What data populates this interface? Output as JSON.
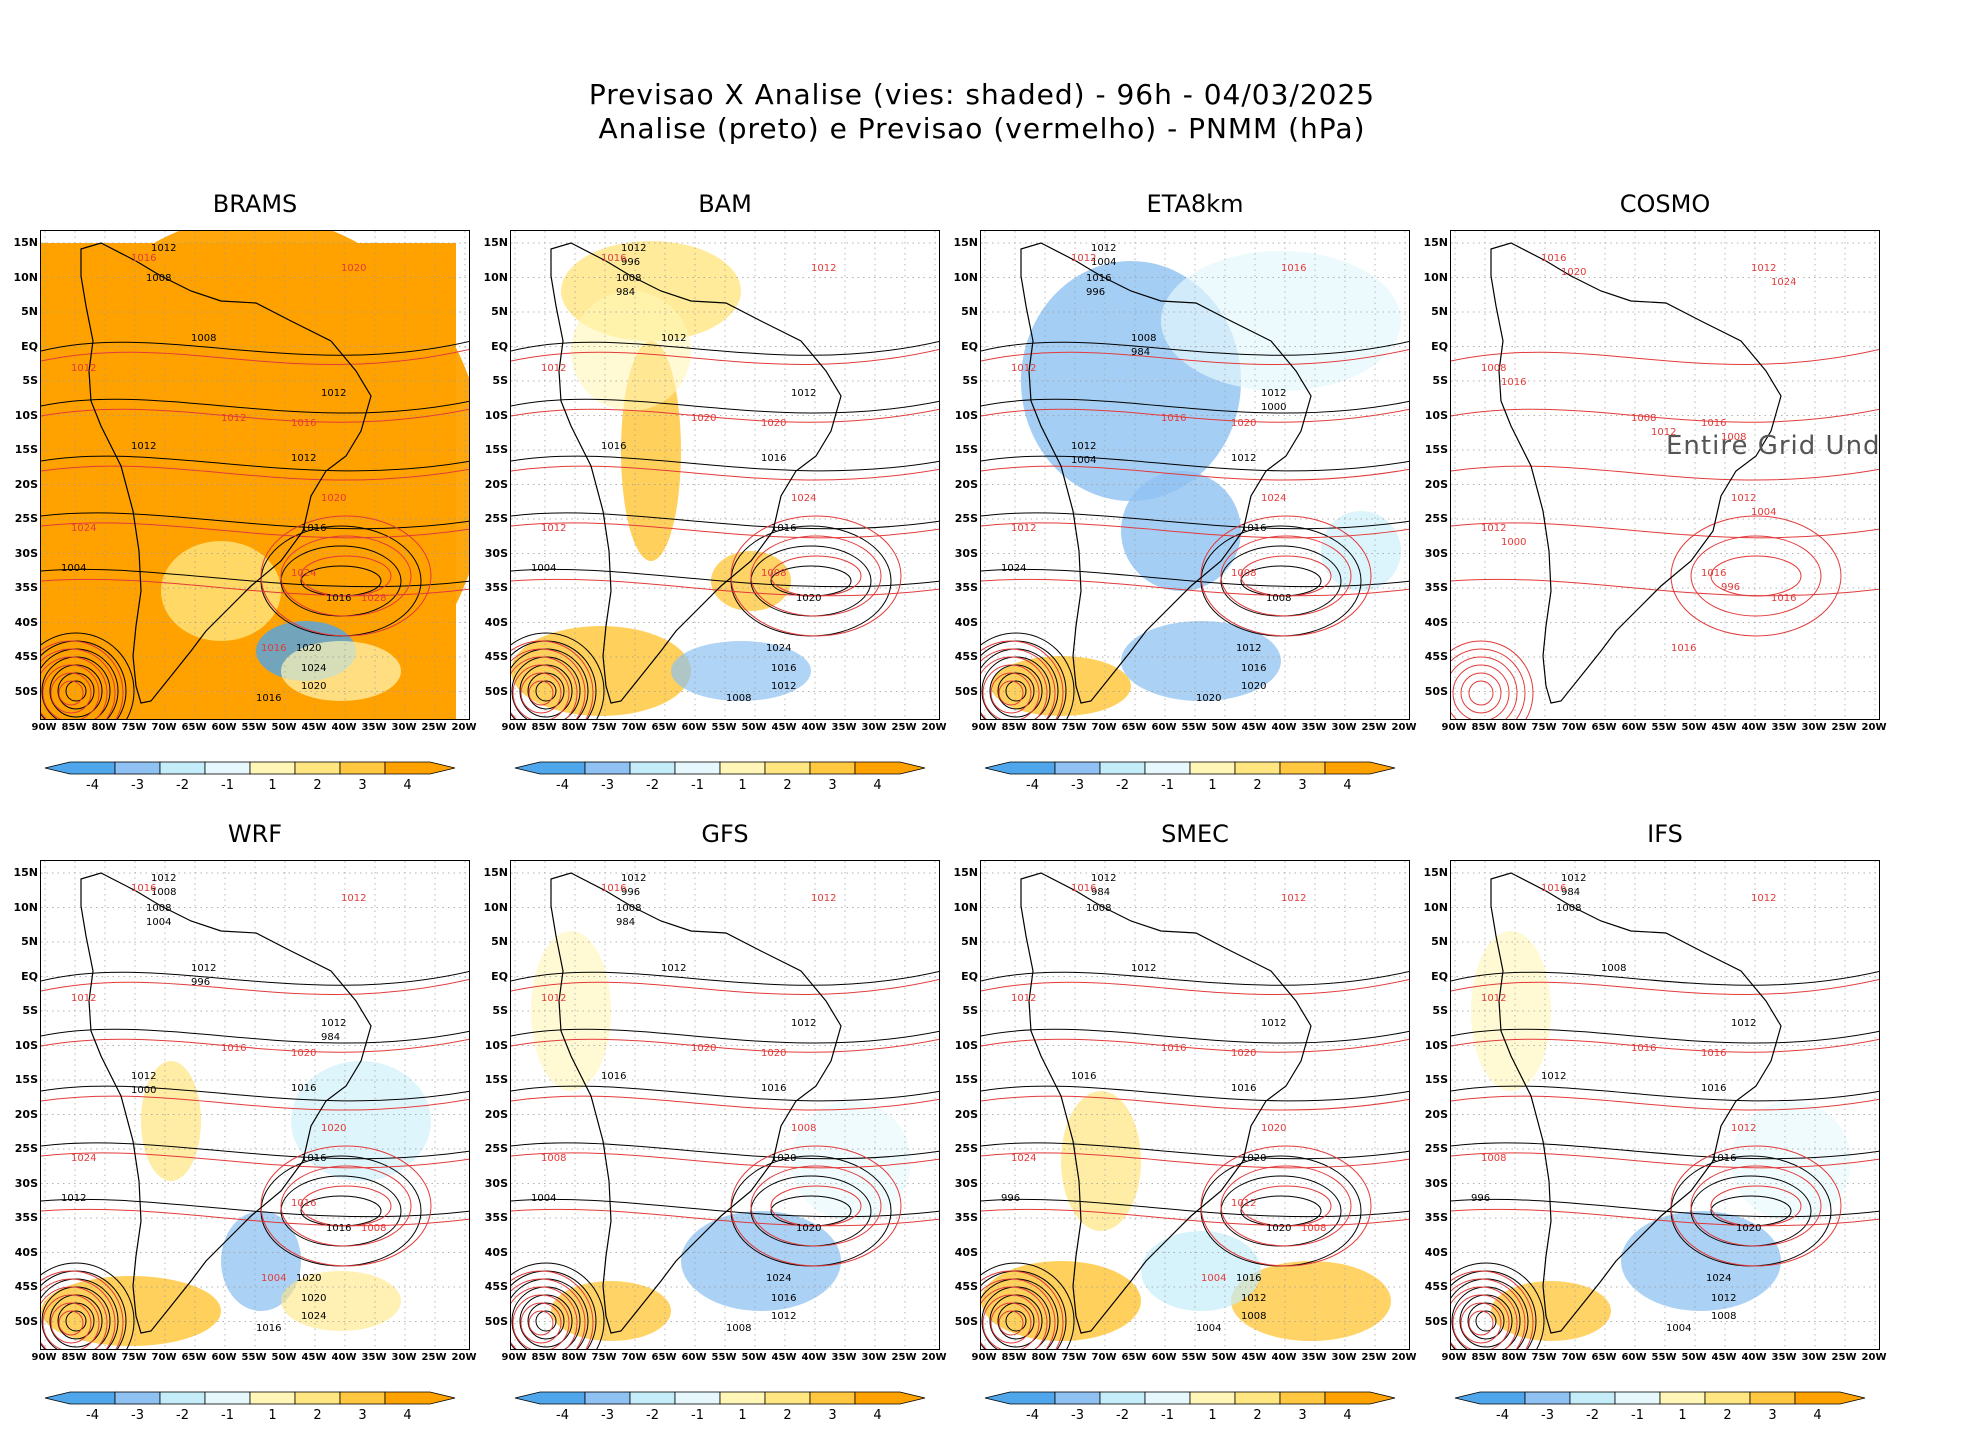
{
  "header": {
    "line1": "Previsao X Analise (vies: shaded) - 96h - 04/03/2025",
    "line2": "Analise (preto) e Previsao (vermelho) - PNMM (hPa)"
  },
  "colors": {
    "neg4": "#4fa6ea",
    "neg3": "#8fc2f2",
    "neg2": "#c4ecf9",
    "neg1": "#e6f8fc",
    "pos1": "#fff6b8",
    "pos2": "#ffe680",
    "pos3": "#ffc840",
    "pos4": "#ffa200",
    "analysis": "#000000",
    "forecast": "#e23a3a"
  },
  "lat_labels": [
    "15N",
    "10N",
    "5N",
    "EQ",
    "5S",
    "10S",
    "15S",
    "20S",
    "25S",
    "30S",
    "35S",
    "40S",
    "45S",
    "50S"
  ],
  "lon_labels": [
    "90W",
    "85W",
    "80W",
    "75W",
    "70W",
    "65W",
    "60W",
    "55W",
    "50W",
    "45W",
    "40W",
    "35W",
    "30W",
    "25W",
    "20W"
  ],
  "colorbar": {
    "labels": [
      "-4",
      "-3",
      "-2",
      "-1",
      "1",
      "2",
      "3",
      "4"
    ]
  },
  "panels": [
    {
      "name": "BRAMS",
      "bias": "warm-strong",
      "labels_analysis": [
        "1012",
        "1008",
        "1008",
        "1012",
        "1012",
        "1012",
        "1016",
        "1016",
        "1020",
        "1024",
        "1020",
        "1016",
        "1004"
      ],
      "labels_forecast": [
        "1016",
        "1020",
        "1012",
        "1012",
        "1016",
        "1020",
        "1024",
        "1024",
        "1028",
        "1016"
      ]
    },
    {
      "name": "BAM",
      "bias": "warm-south",
      "labels_analysis": [
        "1012",
        "1008",
        "1012",
        "1012",
        "1016",
        "1016",
        "1016",
        "1020",
        "1024",
        "1016",
        "1012",
        "1008",
        "1004",
        "996",
        "984"
      ],
      "labels_forecast": [
        "1016",
        "1012",
        "1012",
        "1020",
        "1020",
        "1024",
        "1012",
        "1008"
      ]
    },
    {
      "name": "ETA8km",
      "bias": "cold",
      "labels_analysis": [
        "1012",
        "1016",
        "1008",
        "1012",
        "1012",
        "1012",
        "1016",
        "1008",
        "1012",
        "1016",
        "1020",
        "1020",
        "1024",
        "1004",
        "996",
        "984",
        "1000",
        "1004"
      ],
      "labels_forecast": [
        "1012",
        "1016",
        "1012",
        "1016",
        "1020",
        "1024",
        "1012",
        "1008"
      ]
    },
    {
      "name": "COSMO",
      "bias": "undefined",
      "undefined_text": "Entire Grid Und",
      "labels_analysis": [],
      "labels_forecast": [
        "1016",
        "1012",
        "1008",
        "1008",
        "1016",
        "1012",
        "1012",
        "1016",
        "1016",
        "1016",
        "1020",
        "1024",
        "1016",
        "1012",
        "1008",
        "1004",
        "1000",
        "996"
      ]
    },
    {
      "name": "WRF",
      "bias": "mixed",
      "labels_analysis": [
        "1012",
        "1008",
        "1012",
        "1012",
        "1012",
        "1016",
        "1016",
        "1016",
        "1020",
        "1020",
        "1024",
        "1016",
        "1012",
        "1008",
        "1004",
        "996",
        "984",
        "1000"
      ],
      "labels_forecast": [
        "1016",
        "1012",
        "1012",
        "1016",
        "1020",
        "1020",
        "1024",
        "1016",
        "1008",
        "1004"
      ]
    },
    {
      "name": "GFS",
      "bias": "mixed-cold",
      "labels_analysis": [
        "1012",
        "1008",
        "1012",
        "1012",
        "1016",
        "1016",
        "1020",
        "1020",
        "1024",
        "1016",
        "1012",
        "1008",
        "1004",
        "996",
        "984"
      ],
      "labels_forecast": [
        "1016",
        "1012",
        "1012",
        "1020",
        "1020",
        "1008",
        "1008"
      ]
    },
    {
      "name": "SMEC",
      "bias": "mixed-warm",
      "labels_analysis": [
        "1012",
        "1008",
        "1012",
        "1012",
        "1016",
        "1016",
        "1020",
        "1020",
        "1016",
        "1012",
        "1008",
        "1004",
        "996",
        "984"
      ],
      "labels_forecast": [
        "1016",
        "1012",
        "1012",
        "1016",
        "1020",
        "1020",
        "1024",
        "1012",
        "1008",
        "1004"
      ]
    },
    {
      "name": "IFS",
      "bias": "mixed-cold",
      "labels_analysis": [
        "1012",
        "1008",
        "1008",
        "1012",
        "1012",
        "1016",
        "1016",
        "1020",
        "1024",
        "1012",
        "1008",
        "1004",
        "996",
        "984"
      ],
      "labels_forecast": [
        "1016",
        "1012",
        "1012",
        "1016",
        "1016",
        "1012",
        "1008"
      ]
    }
  ]
}
